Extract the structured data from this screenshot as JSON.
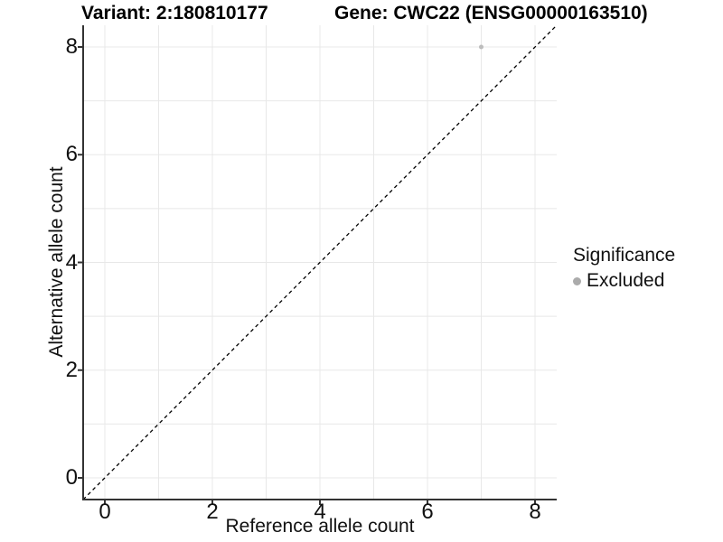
{
  "header": {
    "variant_title": "Variant: 2:180810177",
    "gene_title": "Gene: CWC22 (ENSG00000163510)"
  },
  "chart_data": {
    "type": "scatter",
    "titles": [
      "Variant: 2:180810177",
      "Gene: CWC22 (ENSG00000163510)"
    ],
    "xlabel": "Reference allele count",
    "ylabel": "Alternative allele count",
    "xlim": [
      0,
      8
    ],
    "ylim": [
      0,
      8
    ],
    "x_ticks": [
      0,
      2,
      4,
      6,
      8
    ],
    "y_ticks": [
      0,
      2,
      4,
      6,
      8
    ],
    "gridline_step": 1,
    "grid_on": true,
    "points": [
      {
        "x": 7,
        "y": 8,
        "series": "Excluded",
        "color": "#BDBDBD"
      }
    ],
    "reference_line": {
      "type": "identity",
      "style": "dashed",
      "color": "#000000"
    },
    "legend": {
      "title": "Significance",
      "position": "right",
      "entries": [
        {
          "label": "Excluded",
          "color": "#ABABAB"
        }
      ]
    },
    "colors": {
      "grid": "#E8E8E8",
      "axis": "#333333",
      "tick_text": "#111111",
      "title_text": "#000000"
    }
  }
}
